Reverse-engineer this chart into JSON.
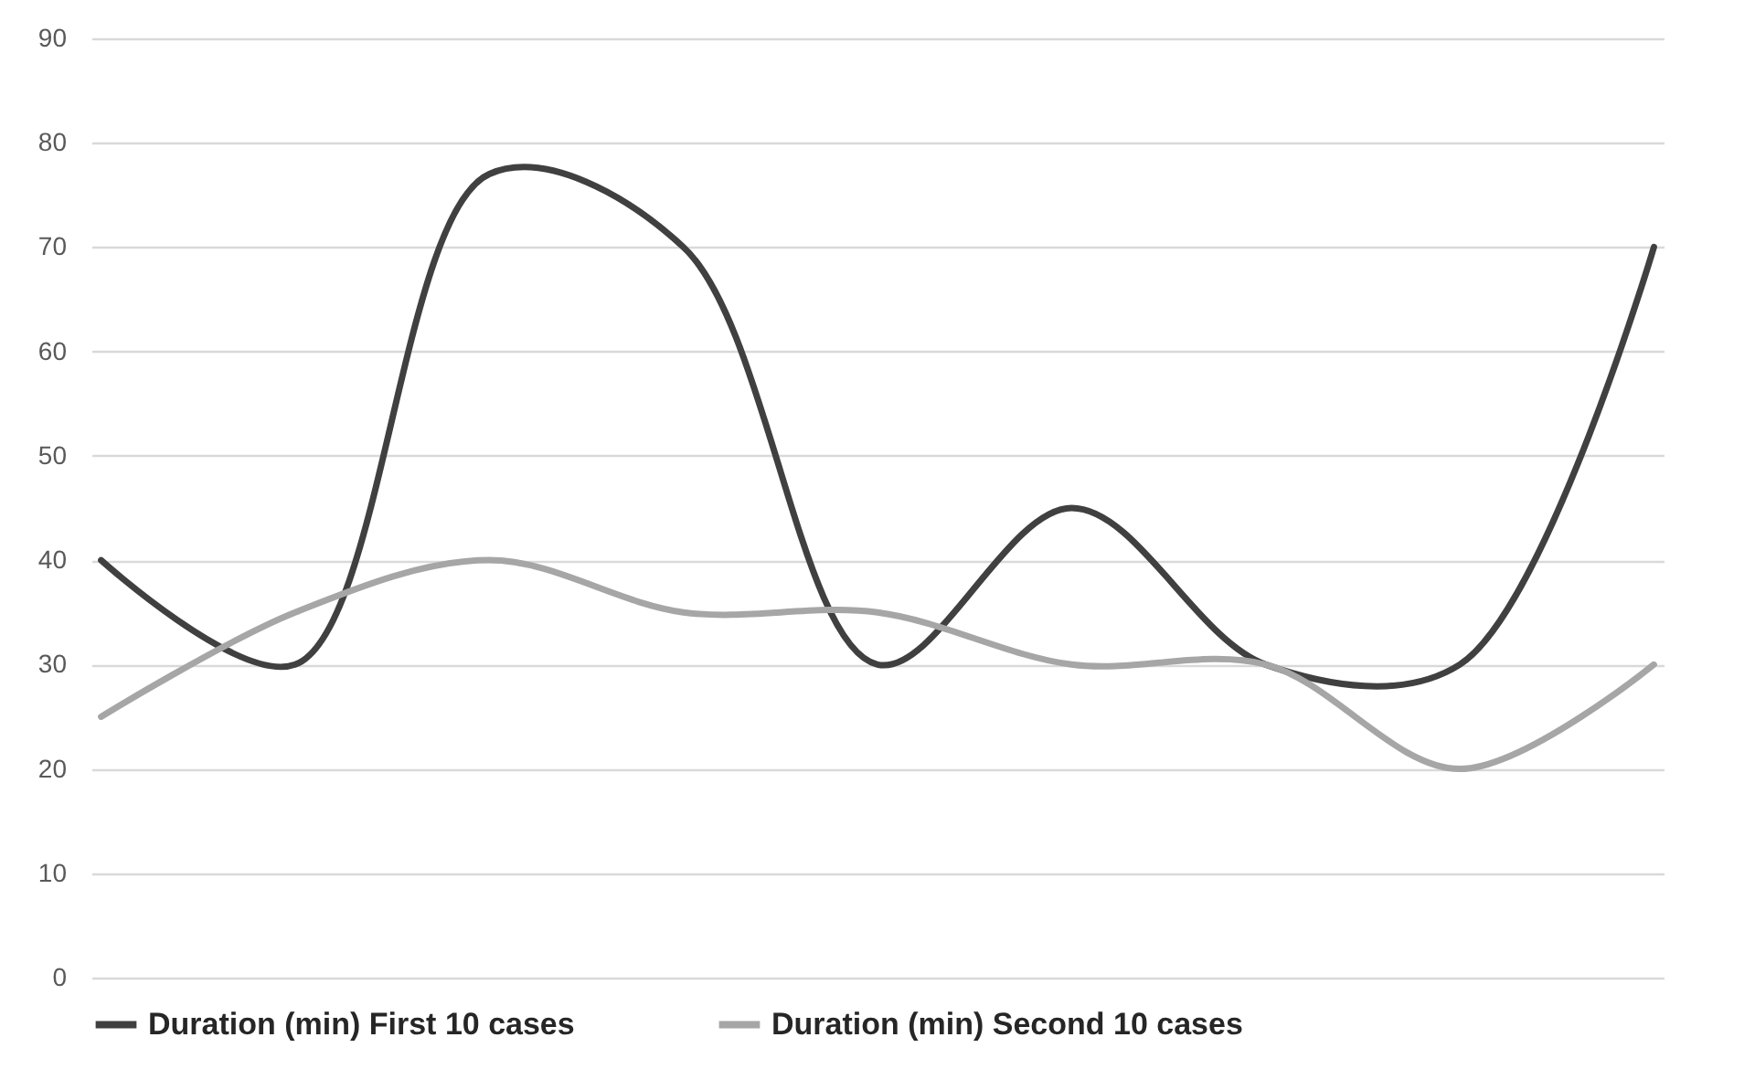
{
  "chart_data": {
    "type": "line",
    "categories": [
      null,
      null,
      null,
      null,
      null,
      null,
      null,
      null,
      null
    ],
    "series": [
      {
        "name": "Duration (min) First 10 cases",
        "color": "#404040",
        "values": [
          40,
          30,
          77,
          70,
          30,
          45,
          30,
          30,
          70
        ]
      },
      {
        "name": "Duration (min) Second 10 cases",
        "color": "#a6a6a6",
        "values": [
          25,
          35,
          40,
          35,
          35,
          30,
          30,
          20,
          30
        ]
      }
    ],
    "ylim": [
      0,
      90
    ],
    "yticks": [
      0,
      10,
      20,
      30,
      40,
      50,
      60,
      70,
      80,
      90
    ],
    "grid": "y",
    "legend": "bottom",
    "tick_labels": "y",
    "marker": "none",
    "line_style": "solid"
  }
}
